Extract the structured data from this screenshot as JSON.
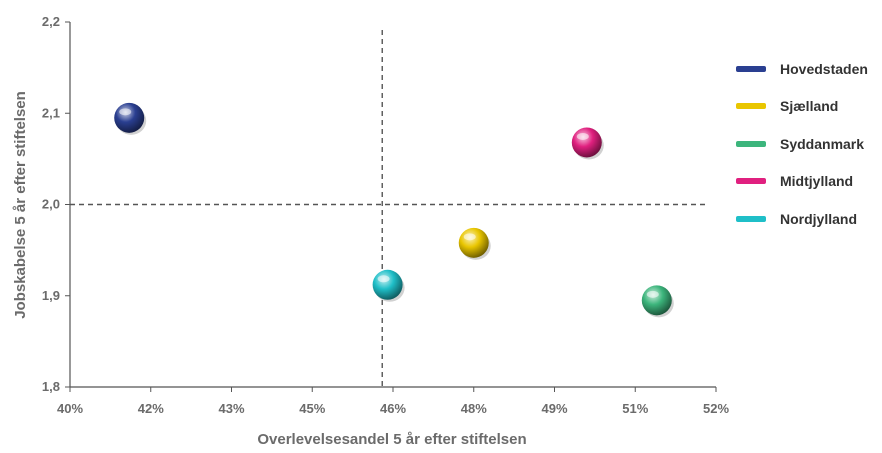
{
  "chart_data": {
    "type": "scatter",
    "xlabel": "Overlevelsesandel 5 år efter stiftelsen",
    "ylabel": "Jobskabelse 5 år efter stiftelsen",
    "x_tick_labels": [
      "40%",
      "42%",
      "43%",
      "45%",
      "46%",
      "48%",
      "49%",
      "51%",
      "52%"
    ],
    "y_tick_labels": [
      "1,8",
      "1,9",
      "2,0",
      "2,1",
      "2,2"
    ],
    "xlim": [
      40,
      52
    ],
    "ylim": [
      1.8,
      2.2
    ],
    "grid": false,
    "reference_lines": {
      "x": 45.8,
      "y": 2.0
    },
    "legend_position": "right",
    "series": [
      {
        "name": "Hovedstaden",
        "color": "#2a3f91",
        "x": 41.1,
        "y": 2.095
      },
      {
        "name": "Sjælland",
        "color": "#e9c600",
        "x": 47.5,
        "y": 1.958
      },
      {
        "name": "Syddanmark",
        "color": "#3cb57c",
        "x": 50.9,
        "y": 1.895
      },
      {
        "name": "Midtjylland",
        "color": "#e0207f",
        "x": 49.6,
        "y": 2.068
      },
      {
        "name": "Nordjylland",
        "color": "#1fbfc8",
        "x": 45.9,
        "y": 1.912
      }
    ]
  }
}
